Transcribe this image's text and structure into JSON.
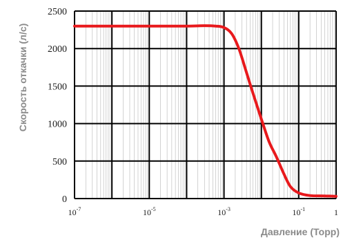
{
  "chart_data": {
    "type": "line",
    "xlabel": "Давление (Торр)",
    "ylabel": "Скорость откачки (л/с)",
    "x_scale": "log",
    "xlim": [
      1e-07,
      1
    ],
    "ylim": [
      0,
      2500
    ],
    "x_ticks": [
      {
        "base": "10",
        "exp": "-7",
        "value": 1e-07
      },
      {
        "base": "10",
        "exp": "-5",
        "value": 1e-05
      },
      {
        "base": "10",
        "exp": "-3",
        "value": 0.001
      },
      {
        "base": "10",
        "exp": "-1",
        "value": 0.1
      },
      {
        "base": "1",
        "exp": "",
        "value": 1
      }
    ],
    "y_ticks": [
      "0",
      "500",
      "1000",
      "1500",
      "2000",
      "2500"
    ],
    "y_tick_values": [
      0,
      500,
      1000,
      1500,
      2000,
      2500
    ],
    "grid": true,
    "series": [
      {
        "color": "#e8191c",
        "x": [
          1e-07,
          1e-06,
          1e-05,
          0.0001,
          0.0003,
          0.0006,
          0.001,
          0.0016,
          0.0025,
          0.004,
          0.006,
          0.01,
          0.016,
          0.025,
          0.04,
          0.06,
          0.1,
          0.2,
          0.5,
          1
        ],
        "y": [
          2300,
          2300,
          2300,
          2300,
          2305,
          2300,
          2280,
          2200,
          2000,
          1680,
          1400,
          1060,
          760,
          560,
          330,
          160,
          75,
          40,
          35,
          30
        ]
      }
    ]
  }
}
